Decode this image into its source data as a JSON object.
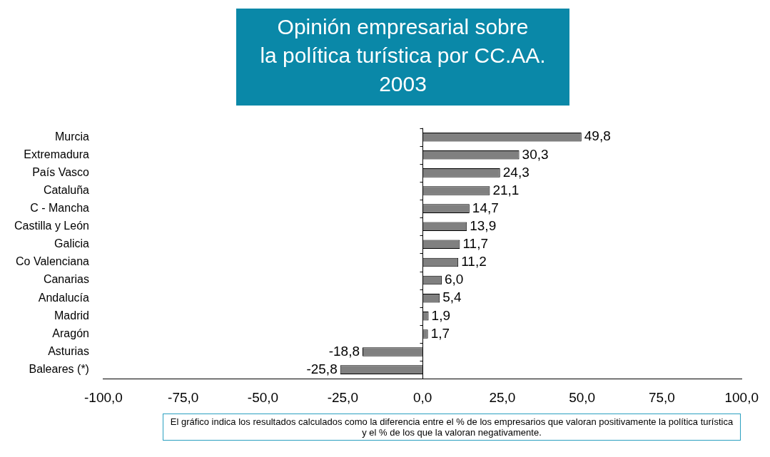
{
  "chart_data": {
    "type": "bar",
    "orientation": "horizontal",
    "title": "Opinión empresarial sobre\nla política turística por CC.AA.\n2003",
    "categories": [
      "Murcia",
      "Extremadura",
      "País Vasco",
      "Cataluña",
      "C - Mancha",
      "Castilla y León",
      "Galicia",
      "Co Valenciana",
      "Canarias",
      "Andalucía",
      "Madrid",
      "Aragón",
      "Asturias",
      "Baleares (*)"
    ],
    "values": [
      49.8,
      30.3,
      24.3,
      21.1,
      14.7,
      13.9,
      11.7,
      11.2,
      6.0,
      5.4,
      1.9,
      1.7,
      -18.8,
      -25.8
    ],
    "value_labels": [
      "49,8",
      "30,3",
      "24,3",
      "21,1",
      "14,7",
      "13,9",
      "11,7",
      "11,2",
      "6,0",
      "5,4",
      "1,9",
      "1,7",
      "-18,8",
      "-25,8"
    ],
    "color": "#808080",
    "legend": false,
    "xlim": [
      -100,
      100
    ],
    "xticks": [
      {
        "value": -100,
        "label": "-100,0"
      },
      {
        "value": -75,
        "label": "-75,0"
      },
      {
        "value": -50,
        "label": "-50,0"
      },
      {
        "value": -25,
        "label": "-25,0"
      },
      {
        "value": 0,
        "label": "0,0"
      },
      {
        "value": 25,
        "label": "25,0"
      },
      {
        "value": 50,
        "label": "50,0"
      },
      {
        "value": 75,
        "label": "75,0"
      },
      {
        "value": 100,
        "label": "100,0"
      }
    ],
    "annotations": [
      "El gráfico indica los resultados calculados como la diferencia entre el % de los empresarios que valoran positivamente la política turística y el % de los que la valoran negativamente."
    ]
  }
}
